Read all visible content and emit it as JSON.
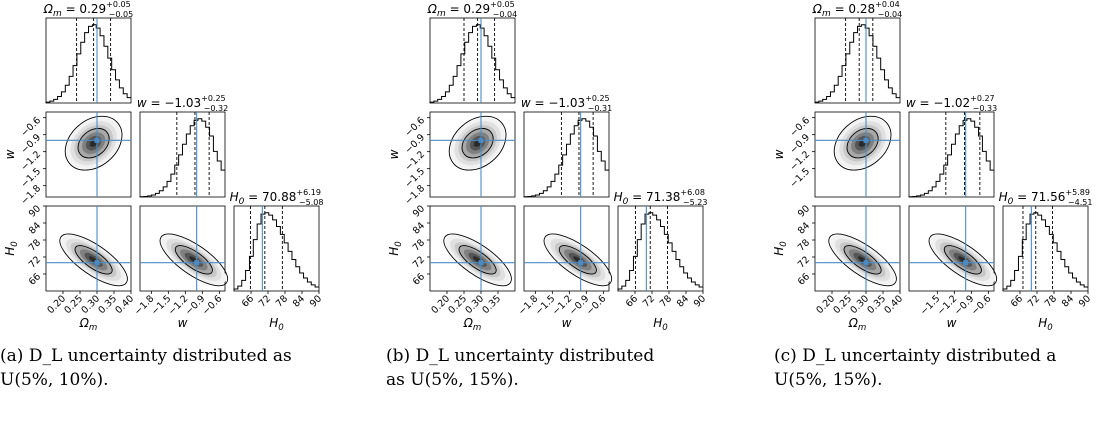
{
  "chart_data": [
    {
      "type": "corner",
      "parameters": [
        "Ωm",
        "w",
        "H0"
      ],
      "truth": {
        "Om": 0.3,
        "w": -1.0,
        "H0": 70
      },
      "titles": {
        "Om": {
          "median": "0.29",
          "plus": "+0.05",
          "minus": "−0.05"
        },
        "w": {
          "median": "−1.03",
          "plus": "+0.25",
          "minus": "−0.32"
        },
        "H0": {
          "median": "70.88",
          "plus": "+6.19",
          "minus": "−5.08"
        }
      },
      "ranges": {
        "Om": [
          0.15,
          0.4
        ],
        "w": [
          -2.0,
          -0.5
        ],
        "H0": [
          60,
          90
        ]
      },
      "ticks": {
        "Om": [
          "0.20",
          "0.25",
          "0.30",
          "0.35",
          "0.40"
        ],
        "w": [
          "−1.8",
          "−1.5",
          "−1.2",
          "−0.9",
          "−0.6"
        ],
        "H0": [
          "66",
          "72",
          "78",
          "84",
          "90"
        ]
      },
      "caption": {
        "label": "(a)",
        "text": "D_L uncertainty distributed as",
        "sub": "U(5%, 10%)."
      }
    },
    {
      "type": "corner",
      "parameters": [
        "Ωm",
        "w",
        "H0"
      ],
      "truth": {
        "Om": 0.3,
        "w": -1.0,
        "H0": 70
      },
      "titles": {
        "Om": {
          "median": "0.29",
          "plus": "+0.05",
          "minus": "−0.04"
        },
        "w": {
          "median": "−1.03",
          "plus": "+0.25",
          "minus": "−0.31"
        },
        "H0": {
          "median": "71.38",
          "plus": "+6.08",
          "minus": "−5.23"
        }
      },
      "ranges": {
        "Om": [
          0.15,
          0.4
        ],
        "w": [
          -2.0,
          -0.5
        ],
        "H0": [
          60,
          90
        ]
      },
      "ticks": {
        "Om": [
          "0.20",
          "0.25",
          "0.30",
          "0.35"
        ],
        "w": [
          "−1.8",
          "−1.5",
          "−1.2",
          "−0.9",
          "−0.6"
        ],
        "H0": [
          "66",
          "72",
          "78",
          "84",
          "90"
        ]
      },
      "caption": {
        "label": "(b)",
        "text": "D_L uncertainty distributed",
        "sub": "as U(5%, 15%)."
      }
    },
    {
      "type": "corner",
      "parameters": [
        "Ωm",
        "w",
        "H0"
      ],
      "truth": {
        "Om": 0.3,
        "w": -1.0,
        "H0": 70
      },
      "titles": {
        "Om": {
          "median": "0.28",
          "plus": "+0.04",
          "minus": "−0.04"
        },
        "w": {
          "median": "−1.02",
          "plus": "+0.27",
          "minus": "−0.33"
        },
        "H0": {
          "median": "71.56",
          "plus": "+5.89",
          "minus": "−4.51"
        }
      },
      "ranges": {
        "Om": [
          0.15,
          0.4
        ],
        "w": [
          -2.0,
          -0.5
        ],
        "H0": [
          60,
          90
        ]
      },
      "ticks": {
        "Om": [
          "0.20",
          "0.25",
          "0.30",
          "0.35",
          "0.40"
        ],
        "w": [
          "−1.5",
          "−1.2",
          "−0.9",
          "−0.6"
        ],
        "H0": [
          "66",
          "72",
          "78",
          "84",
          "90"
        ]
      },
      "caption": {
        "label": "(c)",
        "text": "D_L uncertainty distributed a",
        "sub": "U(5%, 15%)."
      }
    }
  ]
}
